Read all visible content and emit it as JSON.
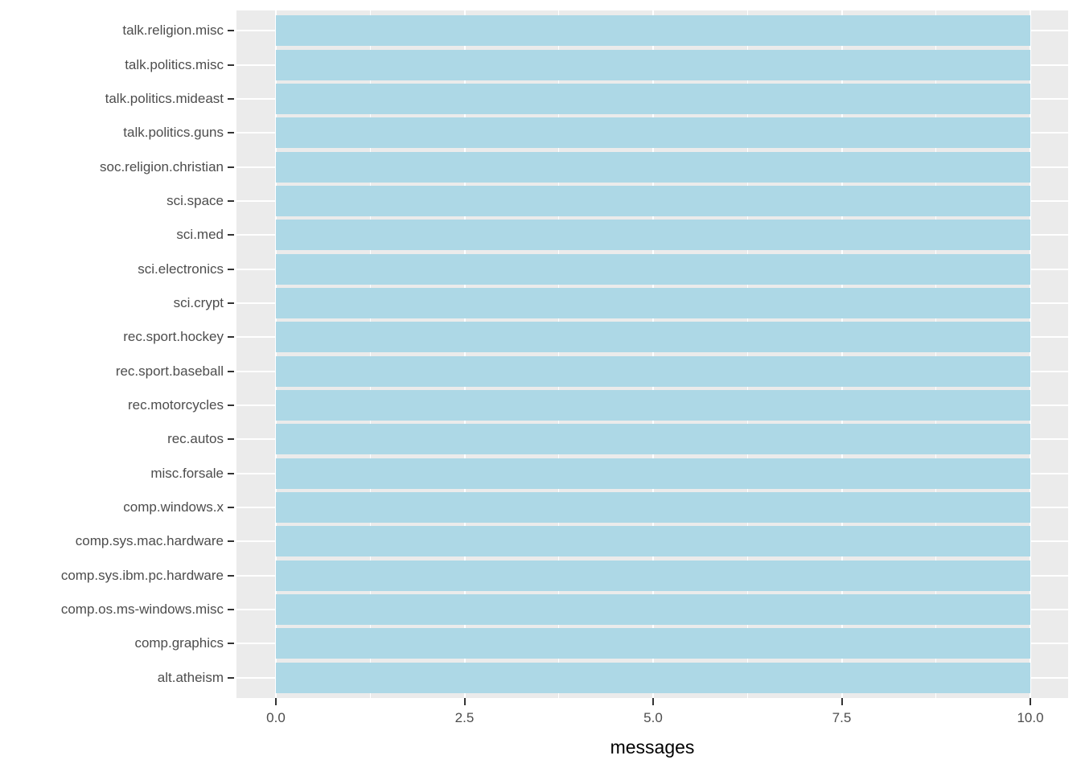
{
  "chart_data": {
    "type": "bar",
    "orientation": "horizontal",
    "title": "",
    "xlabel": "messages",
    "ylabel": "",
    "categories": [
      "talk.religion.misc",
      "talk.politics.misc",
      "talk.politics.mideast",
      "talk.politics.guns",
      "soc.religion.christian",
      "sci.space",
      "sci.med",
      "sci.electronics",
      "sci.crypt",
      "rec.sport.hockey",
      "rec.sport.baseball",
      "rec.motorcycles",
      "rec.autos",
      "misc.forsale",
      "comp.windows.x",
      "comp.sys.mac.hardware",
      "comp.sys.ibm.pc.hardware",
      "comp.os.ms-windows.misc",
      "comp.graphics",
      "alt.atheism"
    ],
    "values": [
      10,
      10,
      10,
      10,
      10,
      10,
      10,
      10,
      10,
      10,
      10,
      10,
      10,
      10,
      10,
      10,
      10,
      10,
      10,
      10
    ],
    "xlim": [
      0,
      10
    ],
    "x_tick_values": [
      0,
      2.5,
      5,
      7.5,
      10
    ],
    "x_tick_labels": [
      "0.0",
      "2.5",
      "5.0",
      "7.5",
      "10.0"
    ],
    "x_minor_gridlines": [
      1.25,
      3.75,
      6.25,
      8.75
    ],
    "grid": "white major and minor vertical gridlines; white horizontal gridline per category",
    "legend": null
  },
  "style": {
    "bar_color": "#ADD8E6",
    "panel_background": "#EBEBEB",
    "gridline_color": "#FFFFFF",
    "tick_mark_color": "#333333",
    "tick_label_color": "#4D4D4D",
    "axis_title_color": "#000000",
    "figure_background": "#FFFFFF"
  }
}
